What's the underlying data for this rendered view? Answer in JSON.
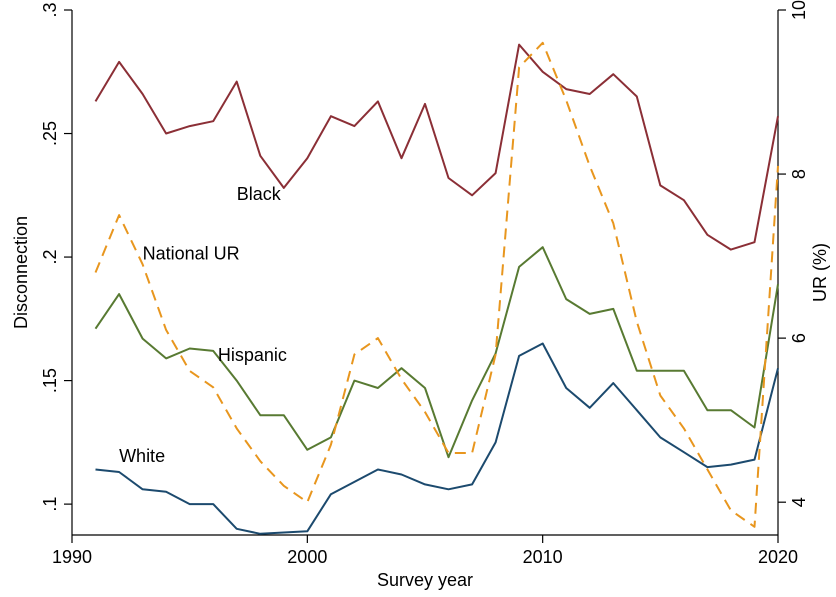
{
  "chart_data": {
    "type": "line",
    "title": "",
    "xlabel": "Survey year",
    "ylabel": "Disconnection",
    "y2label": "UR (%)",
    "xlim": [
      1990,
      2020
    ],
    "ylim": [
      0.0875,
      0.3
    ],
    "y2lim": [
      3.6,
      10
    ],
    "xticks": [
      1990,
      2000,
      2010,
      2020
    ],
    "yticks": [
      0.1,
      0.15,
      0.2,
      0.25,
      0.3
    ],
    "ytick_labels": [
      ".1",
      ".15",
      ".2",
      ".25",
      ".3"
    ],
    "y2ticks": [
      4,
      6,
      8,
      10
    ],
    "y2tick_labels": [
      "4",
      "6",
      "8",
      "10"
    ],
    "grid": false,
    "legend": "none",
    "x": [
      1991,
      1992,
      1993,
      1994,
      1995,
      1996,
      1997,
      1998,
      1999,
      2000,
      2001,
      2002,
      2003,
      2004,
      2005,
      2006,
      2007,
      2008,
      2009,
      2010,
      2011,
      2012,
      2013,
      2014,
      2015,
      2016,
      2017,
      2018,
      2019,
      2020
    ],
    "series": [
      {
        "name": "Black",
        "axis": "left",
        "color": "#8b2f36",
        "dash": "solid",
        "label_at": [
          1997,
          0.223
        ],
        "values": [
          0.263,
          0.279,
          0.266,
          0.25,
          0.253,
          0.255,
          0.271,
          0.241,
          0.228,
          0.24,
          0.257,
          0.253,
          0.263,
          0.24,
          0.262,
          0.232,
          0.225,
          0.234,
          0.286,
          0.275,
          0.268,
          0.266,
          0.274,
          0.265,
          0.229,
          0.223,
          0.209,
          0.203,
          0.206,
          0.257
        ]
      },
      {
        "name": "Hispanic",
        "axis": "left",
        "color": "#587a32",
        "dash": "solid",
        "label_at": [
          1996.2,
          0.158
        ],
        "values": [
          0.171,
          0.185,
          0.167,
          0.159,
          0.163,
          0.162,
          0.15,
          0.136,
          0.136,
          0.122,
          0.127,
          0.15,
          0.147,
          0.155,
          0.147,
          0.119,
          0.142,
          0.161,
          0.196,
          0.204,
          0.183,
          0.177,
          0.179,
          0.154,
          0.154,
          0.154,
          0.138,
          0.138,
          0.131,
          0.189
        ]
      },
      {
        "name": "White",
        "axis": "left",
        "color": "#1c4a6e",
        "dash": "solid",
        "label_at": [
          1992,
          0.117
        ],
        "values": [
          0.114,
          0.113,
          0.106,
          0.105,
          0.1,
          0.1,
          0.09,
          0.088,
          0.0885,
          0.089,
          0.104,
          0.109,
          0.114,
          0.112,
          0.108,
          0.106,
          0.108,
          0.125,
          0.16,
          0.165,
          0.147,
          0.139,
          0.149,
          0.138,
          0.127,
          0.121,
          0.115,
          0.116,
          0.118,
          0.155
        ]
      },
      {
        "name": "National UR",
        "axis": "right",
        "color": "#e8961e",
        "dash": "dashed",
        "label_at": [
          1993,
          0.199
        ],
        "values": [
          6.8,
          7.5,
          6.9,
          6.1,
          5.6,
          5.4,
          4.9,
          4.5,
          4.2,
          4.0,
          4.7,
          5.8,
          6.0,
          5.5,
          5.1,
          4.6,
          4.6,
          5.8,
          9.3,
          9.6,
          8.9,
          8.1,
          7.4,
          6.2,
          5.3,
          4.9,
          4.4,
          3.9,
          3.7,
          8.1
        ]
      }
    ]
  }
}
